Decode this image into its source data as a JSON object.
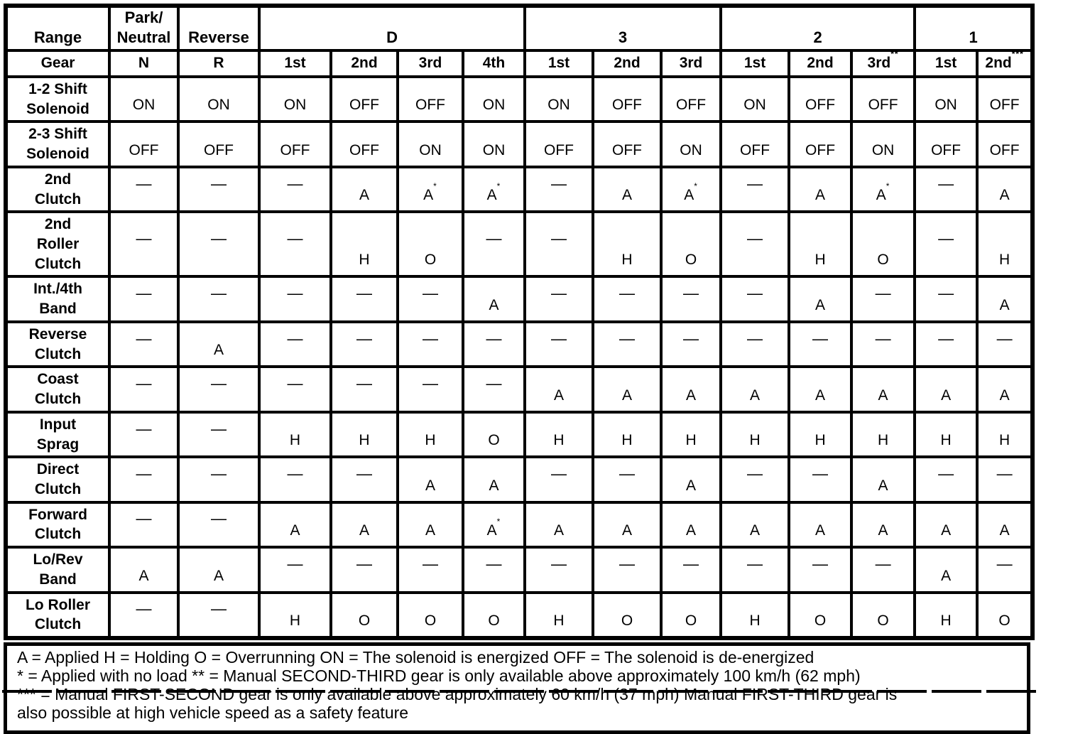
{
  "table": {
    "range_header": {
      "label": "Range",
      "groups": [
        {
          "label": "Park/\nNeutral",
          "span": 1
        },
        {
          "label": "Reverse",
          "span": 1
        },
        {
          "label": "D",
          "span": 4
        },
        {
          "label": "3",
          "span": 3
        },
        {
          "label": "2",
          "span": 3
        },
        {
          "label": "1",
          "span": 2
        }
      ]
    },
    "gear_header": {
      "label": "Gear",
      "cells": [
        "N",
        "R",
        "1st",
        "2nd",
        "3rd",
        "4th",
        "1st",
        "2nd",
        "3rd",
        "1st",
        "2nd",
        "3rd**",
        "1st",
        "2nd***"
      ]
    },
    "rows": [
      {
        "label": "1-2 Shift\nSolenoid",
        "values": [
          "ON",
          "ON",
          "ON",
          "OFF",
          "OFF",
          "ON",
          "ON",
          "OFF",
          "OFF",
          "ON",
          "OFF",
          "OFF",
          "ON",
          "OFF"
        ]
      },
      {
        "label": "2-3 Shift\nSolenoid",
        "values": [
          "OFF",
          "OFF",
          "OFF",
          "OFF",
          "ON",
          "ON",
          "OFF",
          "OFF",
          "ON",
          "OFF",
          "OFF",
          "ON",
          "OFF",
          "OFF"
        ]
      },
      {
        "label": "2nd\nClutch",
        "values": [
          "—",
          "—",
          "—",
          "A",
          "A*",
          "A*",
          "—",
          "A",
          "A*",
          "—",
          "A",
          "A*",
          "—",
          "A"
        ]
      },
      {
        "label": "2nd\nRoller\nClutch",
        "values": [
          "—",
          "—",
          "—",
          "H",
          "O",
          "—",
          "—",
          "H",
          "O",
          "—",
          "H",
          "O",
          "—",
          "H"
        ]
      },
      {
        "label": "Int./4th\nBand",
        "values": [
          "—",
          "—",
          "—",
          "—",
          "—",
          "A",
          "—",
          "—",
          "—",
          "—",
          "A",
          "—",
          "—",
          "A"
        ]
      },
      {
        "label": "Reverse\nClutch",
        "values": [
          "—",
          "A",
          "—",
          "—",
          "—",
          "—",
          "—",
          "—",
          "—",
          "—",
          "—",
          "—",
          "—",
          "—"
        ]
      },
      {
        "label": "Coast\nClutch",
        "values": [
          "—",
          "—",
          "—",
          "—",
          "—",
          "—",
          "A",
          "A",
          "A",
          "A",
          "A",
          "A",
          "A",
          "A"
        ]
      },
      {
        "label": "Input\nSprag",
        "values": [
          "—",
          "—",
          "H",
          "H",
          "H",
          "O",
          "H",
          "H",
          "H",
          "H",
          "H",
          "H",
          "H",
          "H"
        ]
      },
      {
        "label": "Direct\nClutch",
        "values": [
          "—",
          "—",
          "—",
          "—",
          "A",
          "A",
          "—",
          "—",
          "A",
          "—",
          "—",
          "A",
          "—",
          "—"
        ]
      },
      {
        "label": "Forward\nClutch",
        "values": [
          "—",
          "—",
          "A",
          "A",
          "A",
          "A*",
          "A",
          "A",
          "A",
          "A",
          "A",
          "A",
          "A",
          "A"
        ]
      },
      {
        "label": "Lo/Rev\nBand",
        "values": [
          "A",
          "A",
          "—",
          "—",
          "—",
          "—",
          "—",
          "—",
          "—",
          "—",
          "—",
          "—",
          "A",
          "—"
        ]
      },
      {
        "label": "Lo Roller\nClutch",
        "values": [
          "—",
          "—",
          "H",
          "O",
          "O",
          "O",
          "H",
          "O",
          "O",
          "H",
          "O",
          "O",
          "H",
          "O"
        ]
      }
    ]
  },
  "footer": {
    "lines": [
      "A = Applied H = Holding O = Overrunning ON = The solenoid is energized OFF = The solenoid is de-energized",
      "* = Applied with no load ** = Manual SECOND-THIRD gear is only available above approximately 100 km/h (62 mph)",
      "*** = Manual FIRST-SECOND gear is only available above approximately 60 km/h (37 mph) Manual FIRST-THIRD gear is",
      "also possible at high vehicle speed as a safety feature"
    ]
  }
}
